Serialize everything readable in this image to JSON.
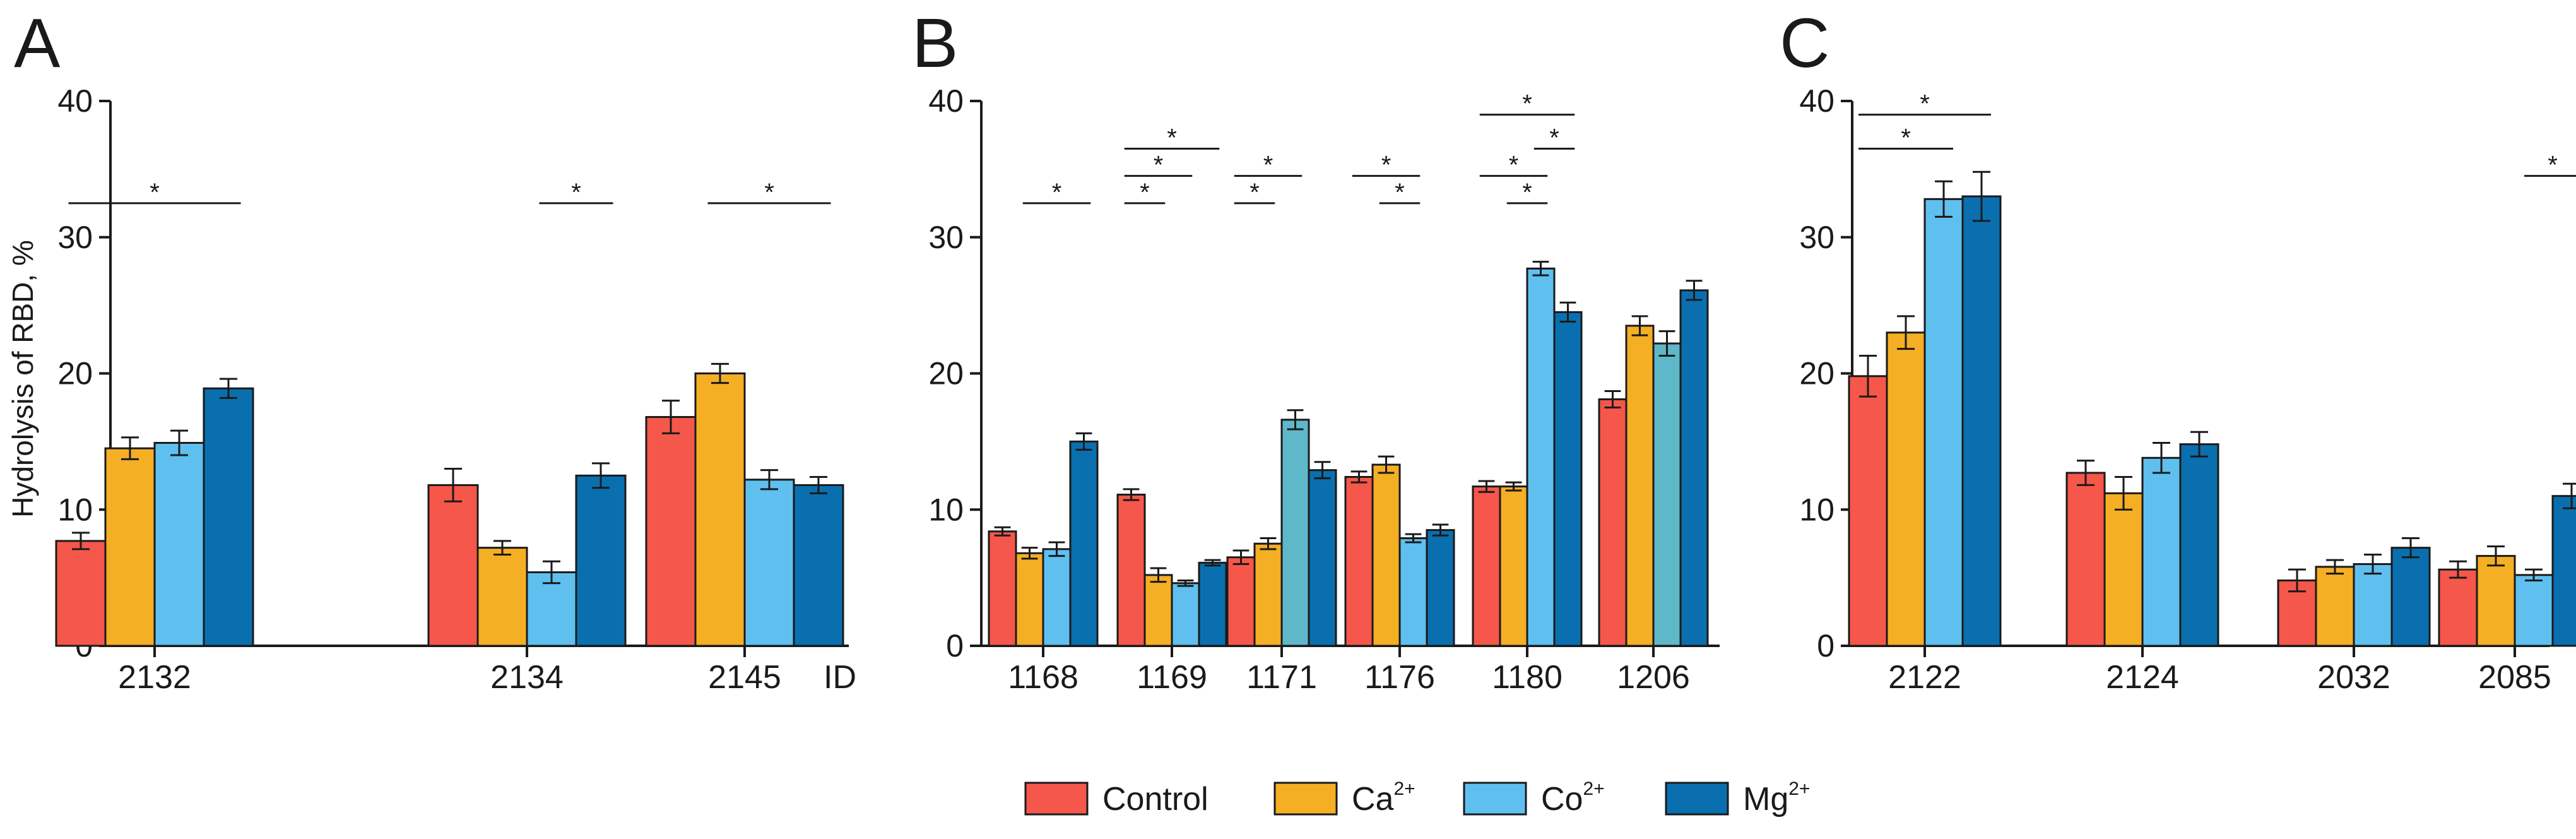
{
  "ylabel": "Hydrolysis of RBD, %",
  "legend": {
    "position": "bottom-center",
    "entries": [
      {
        "name": "Control",
        "sup": "",
        "color": "#F5574A"
      },
      {
        "name": "Ca",
        "sup": "2+",
        "color": "#F5AF25"
      },
      {
        "name": "Co",
        "sup": "2+",
        "color": "#5FC0F0"
      },
      {
        "name": "Mg",
        "sup": "2+",
        "color": "#0A6FAF"
      }
    ]
  },
  "chart_data": [
    {
      "type": "bar",
      "panel": "A",
      "xlabel": "ID",
      "ylim": [
        0,
        40
      ],
      "yticks": [
        0,
        10,
        20,
        30,
        40
      ],
      "categories": [
        {
          "label": "2132",
          "values": [
            7.7,
            14.5,
            14.9,
            18.9
          ],
          "errors": [
            0.6,
            0.8,
            0.9,
            0.7
          ],
          "colors": [
            "#F5574A",
            "#F5AF25",
            "#5FC0F0",
            "#0A6FAF"
          ]
        },
        {
          "label": "2134",
          "values": [
            11.8,
            7.2,
            5.4,
            12.5
          ],
          "errors": [
            1.2,
            0.5,
            0.8,
            0.9
          ],
          "colors": [
            "#F5574A",
            "#F5AF25",
            "#5FC0F0",
            "#0A6FAF"
          ]
        },
        {
          "label": "2145",
          "values": [
            16.8,
            20.0,
            12.2,
            11.8
          ],
          "errors": [
            1.2,
            0.7,
            0.7,
            0.6
          ],
          "colors": [
            "#F5574A",
            "#F5AF25",
            "#5FC0F0",
            "#0A6FAF"
          ]
        }
      ],
      "significance": [
        {
          "category": 0,
          "from": 0,
          "to": 3,
          "y": 32.5,
          "label": "*"
        },
        {
          "category": 1,
          "from": 2,
          "to": 3,
          "y": 32.5,
          "label": "*"
        },
        {
          "category": 2,
          "from": 1,
          "to": 3,
          "y": 32.5,
          "label": "*"
        }
      ]
    },
    {
      "type": "bar",
      "panel": "B",
      "xlabel": "",
      "ylim": [
        0,
        40
      ],
      "yticks": [
        0,
        10,
        20,
        30,
        40
      ],
      "categories": [
        {
          "label": "1168",
          "values": [
            8.4,
            6.8,
            7.1,
            15.0
          ],
          "errors": [
            0.3,
            0.4,
            0.5,
            0.6
          ],
          "colors": [
            "#F5574A",
            "#F5AF25",
            "#5FC0F0",
            "#0A6FAF"
          ]
        },
        {
          "label": "1169",
          "values": [
            11.1,
            5.2,
            4.6,
            6.1
          ],
          "errors": [
            0.4,
            0.5,
            0.2,
            0.2
          ],
          "colors": [
            "#F5574A",
            "#F5AF25",
            "#5FC0F0",
            "#0A6FAF"
          ]
        },
        {
          "label": "1171",
          "values": [
            6.5,
            7.5,
            16.6,
            12.9
          ],
          "errors": [
            0.5,
            0.4,
            0.7,
            0.6
          ],
          "colors": [
            "#F5574A",
            "#F5AF25",
            "#5FB8C9",
            "#0A6FAF"
          ]
        },
        {
          "label": "1176",
          "values": [
            12.4,
            13.3,
            7.9,
            8.5
          ],
          "errors": [
            0.4,
            0.6,
            0.3,
            0.4
          ],
          "colors": [
            "#F5574A",
            "#F5AF25",
            "#5FC0F0",
            "#0A6FAF"
          ]
        },
        {
          "label": "1180",
          "values": [
            11.7,
            11.7,
            27.7,
            24.5
          ],
          "errors": [
            0.4,
            0.3,
            0.5,
            0.7
          ],
          "colors": [
            "#F5574A",
            "#F5AF25",
            "#5FC0F0",
            "#0A6FAF"
          ]
        },
        {
          "label": "1206",
          "values": [
            18.1,
            23.5,
            22.2,
            26.1
          ],
          "errors": [
            0.6,
            0.7,
            0.9,
            0.7
          ],
          "colors": [
            "#F5574A",
            "#F5AF25",
            "#5FB8C9",
            "#0A6FAF"
          ]
        }
      ],
      "significance": [
        {
          "category": 0,
          "from": 1,
          "to": 3,
          "y": 32.5,
          "label": "*"
        },
        {
          "category": 1,
          "from": 0,
          "to": 1,
          "y": 32.5,
          "label": "*"
        },
        {
          "category": 1,
          "from": 0,
          "to": 2,
          "y": 34.5,
          "label": "*"
        },
        {
          "category": 1,
          "from": 0,
          "to": 3,
          "y": 36.5,
          "label": "*"
        },
        {
          "category": 2,
          "from": 0,
          "to": 1,
          "y": 32.5,
          "label": "*"
        },
        {
          "category": 2,
          "from": 0,
          "to": 2,
          "y": 34.5,
          "label": "*"
        },
        {
          "category": 3,
          "from": 1,
          "to": 2,
          "y": 32.5,
          "label": "*"
        },
        {
          "category": 3,
          "from": 0,
          "to": 2,
          "y": 34.5,
          "label": "*"
        },
        {
          "category": 4,
          "from": 1,
          "to": 2,
          "y": 32.5,
          "label": "*"
        },
        {
          "category": 4,
          "from": 0,
          "to": 2,
          "y": 34.5,
          "label": "*"
        },
        {
          "category": 4,
          "from": 2,
          "to": 3,
          "y": 36.5,
          "label": "*"
        },
        {
          "category": 4,
          "from": 0,
          "to": 3,
          "y": 39.0,
          "label": "*"
        }
      ]
    },
    {
      "type": "bar",
      "panel": "C",
      "xlabel": "",
      "ylim": [
        0,
        40
      ],
      "yticks": [
        0,
        10,
        20,
        30,
        40
      ],
      "categories": [
        {
          "label": "2122",
          "values": [
            19.8,
            23.0,
            32.8,
            33.0
          ],
          "errors": [
            1.5,
            1.2,
            1.3,
            1.8
          ],
          "colors": [
            "#F5574A",
            "#F5AF25",
            "#5FC0F0",
            "#0A6FAF"
          ]
        },
        {
          "label": "2124",
          "values": [
            12.7,
            11.2,
            13.8,
            14.8
          ],
          "errors": [
            0.9,
            1.2,
            1.1,
            0.9
          ],
          "colors": [
            "#F5574A",
            "#F5AF25",
            "#5FC0F0",
            "#0A6FAF"
          ]
        },
        {
          "label": "2032",
          "values": [
            4.8,
            5.8,
            6.0,
            7.2
          ],
          "errors": [
            0.8,
            0.5,
            0.7,
            0.7
          ],
          "colors": [
            "#F5574A",
            "#F5AF25",
            "#5FC0F0",
            "#0A6FAF"
          ]
        },
        {
          "label": "2085",
          "values": [
            5.6,
            6.6,
            5.2,
            11.0
          ],
          "errors": [
            0.6,
            0.7,
            0.4,
            0.9
          ],
          "colors": [
            "#F5574A",
            "#F5AF25",
            "#5FC0F0",
            "#0A6FAF"
          ]
        }
      ],
      "significance": [
        {
          "category": 0,
          "from": 0,
          "to": 2,
          "y": 36.5,
          "label": "*"
        },
        {
          "category": 0,
          "from": 0,
          "to": 3,
          "y": 39.0,
          "label": "*"
        },
        {
          "category": 3,
          "from": 2,
          "to": 3,
          "y": 34.5,
          "label": "*"
        }
      ]
    }
  ]
}
